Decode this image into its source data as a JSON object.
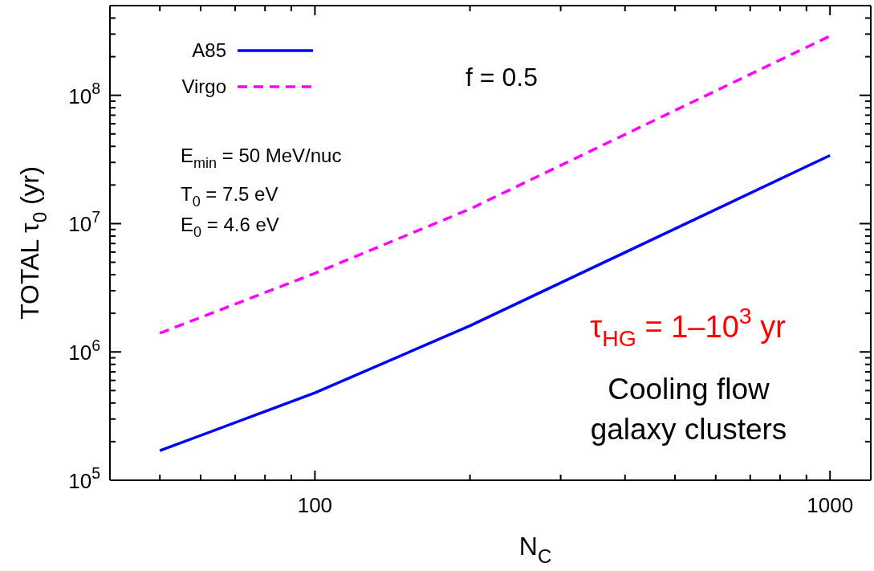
{
  "chart_data": {
    "type": "line",
    "xlabel": "N$_{C}$",
    "ylabel": "TOTAL τ$_{0}$   (yr)",
    "log": "xy",
    "legend": "top left",
    "x": [
      50,
      100,
      200,
      1000
    ],
    "xlim": [
      40,
      1200
    ],
    "ylim": [
      100000,
      500000000
    ],
    "xticks": [
      {
        "value": 50,
        "label": null
      },
      {
        "value": 60,
        "label": null
      },
      {
        "value": 70,
        "label": null
      },
      {
        "value": 80,
        "label": null
      },
      {
        "value": 90,
        "label": null
      },
      100,
      {
        "value": 200,
        "label": null
      },
      {
        "value": 300,
        "label": null
      },
      {
        "value": 400,
        "label": null
      },
      {
        "value": 500,
        "label": null
      },
      {
        "value": 600,
        "label": null
      },
      {
        "value": 700,
        "label": null
      },
      {
        "value": 800,
        "label": null
      },
      {
        "value": 900,
        "label": null
      },
      1000
    ],
    "yticks": [
      {
        "value": 100000,
        "label": "10$^{5}$"
      },
      {
        "value": 200000,
        "label": null
      },
      {
        "value": 300000,
        "label": null
      },
      {
        "value": 400000,
        "label": null
      },
      {
        "value": 500000,
        "label": null
      },
      {
        "value": 600000,
        "label": null
      },
      {
        "value": 700000,
        "label": null
      },
      {
        "value": 800000,
        "label": null
      },
      {
        "value": 900000,
        "label": null
      },
      {
        "value": 1000000,
        "label": "10$^{6}$"
      },
      {
        "value": 2000000,
        "label": null
      },
      {
        "value": 3000000,
        "label": null
      },
      {
        "value": 4000000,
        "label": null
      },
      {
        "value": 5000000,
        "label": null
      },
      {
        "value": 6000000,
        "label": null
      },
      {
        "value": 7000000,
        "label": null
      },
      {
        "value": 8000000,
        "label": null
      },
      {
        "value": 9000000,
        "label": null
      },
      {
        "value": 10000000,
        "label": "10$^{7}$"
      },
      {
        "value": 20000000,
        "label": null
      },
      {
        "value": 30000000,
        "label": null
      },
      {
        "value": 40000000,
        "label": null
      },
      {
        "value": 50000000,
        "label": null
      },
      {
        "value": 60000000,
        "label": null
      },
      {
        "value": 70000000,
        "label": null
      },
      {
        "value": 80000000,
        "label": null
      },
      {
        "value": 90000000,
        "label": null
      },
      {
        "value": 100000000,
        "label": "10$^{8}$"
      },
      {
        "value": 200000000,
        "label": null
      },
      {
        "value": 300000000,
        "label": null
      },
      {
        "value": 400000000,
        "label": null
      }
    ],
    "series": [
      {
        "name": "A85",
        "color": "#0000ff",
        "line_style": "solid",
        "values": [
          170000,
          480000,
          1600000,
          34000000
        ]
      },
      {
        "name": "Virgo",
        "color": "#ff00ff",
        "line_style": "dashed",
        "values": [
          1400000,
          4100000,
          13000000,
          290000000
        ]
      }
    ],
    "annotations": [
      "f = 0.5",
      "E$_{min}$ = 50 MeV/nuc",
      "T$_{0}$ = 7.5 eV",
      "E$_{0}$ = 4.6 eV",
      "τ$_{HG}$ = 1–10$^{3}$ yr",
      "Cooling flow",
      "galaxy clusters"
    ]
  }
}
